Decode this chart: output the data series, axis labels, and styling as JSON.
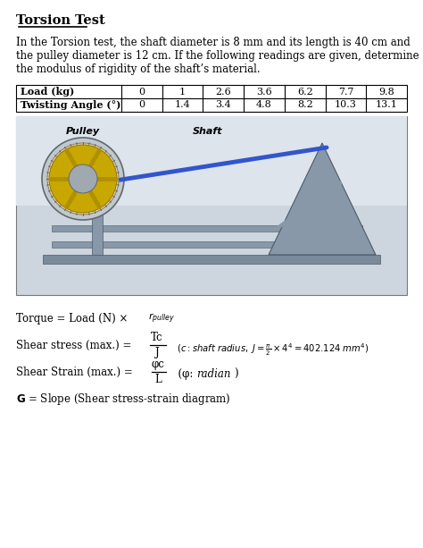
{
  "title": "Torsion Test",
  "paragraph_lines": [
    "In the Torsion test, the shaft diameter is 8 mm and its length is 40 cm and",
    "the pulley diameter is 12 cm. If the following readings are given, determine",
    "the modulus of rigidity of the shaft’s material."
  ],
  "table_col0": [
    "Load (kg)",
    "Twisting Angle (°)"
  ],
  "table_data": [
    [
      0,
      1,
      2.6,
      3.6,
      6.2,
      7.7,
      9.8
    ],
    [
      0,
      1.4,
      3.4,
      4.8,
      8.2,
      10.3,
      13.1
    ]
  ],
  "bg_color": "#ffffff",
  "text_color": "#000000"
}
